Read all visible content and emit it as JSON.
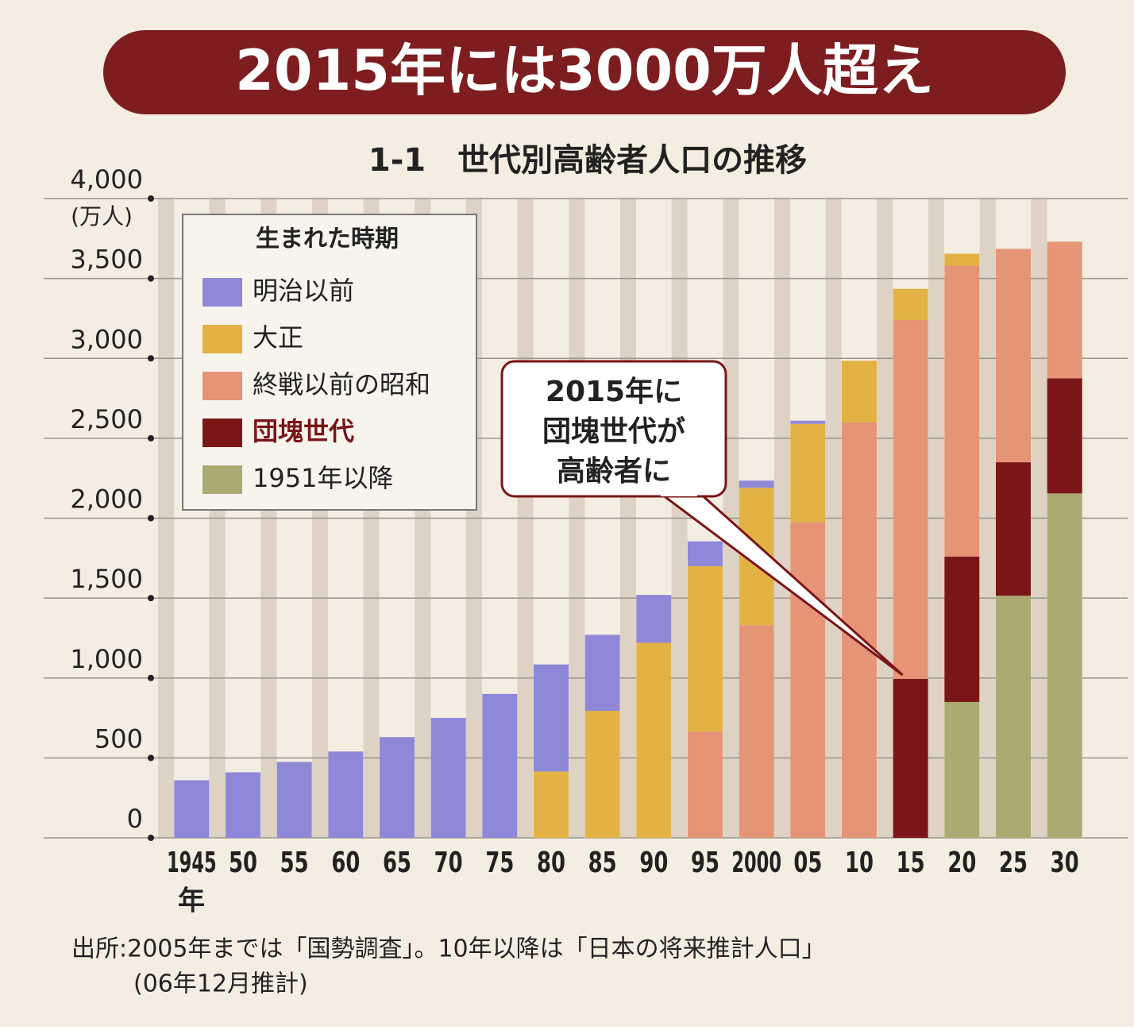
{
  "chart_data": {
    "type": "stacked-bar",
    "title": "2015年には3000万人超え",
    "subtitle": "1-1　世代別高齢者人口の推移",
    "y_unit": "(万人)",
    "x_unit": "年",
    "legend_title": "生まれた時期",
    "callout": [
      "2015年に",
      "団塊世代が",
      "高齢者に"
    ],
    "source": [
      "出所:2005年までは「国勢調査」。10年以降は「日本の将来推計人口」",
      "(06年12月推計)"
    ],
    "categories": [
      "1945",
      "50",
      "55",
      "60",
      "65",
      "70",
      "75",
      "80",
      "85",
      "90",
      "95",
      "2000",
      "05",
      "10",
      "15",
      "20",
      "25",
      "30"
    ],
    "series": [
      {
        "name": "1951年以降",
        "color": "#a9ab72",
        "values": [
          null,
          null,
          null,
          null,
          null,
          null,
          null,
          null,
          null,
          null,
          null,
          null,
          null,
          null,
          null,
          850,
          1515,
          2155
        ]
      },
      {
        "name": "団塊世代",
        "color": "#7a1518",
        "values": [
          null,
          null,
          null,
          null,
          null,
          null,
          null,
          null,
          null,
          null,
          null,
          null,
          null,
          null,
          995,
          910,
          835,
          720
        ]
      },
      {
        "name": "終戦以前の昭和",
        "color": "#e59476",
        "values": [
          null,
          null,
          null,
          null,
          null,
          null,
          null,
          null,
          null,
          null,
          665,
          1330,
          1975,
          2600,
          2245,
          1820,
          1335,
          855
        ]
      },
      {
        "name": "大正",
        "color": "#e2b244",
        "values": [
          null,
          null,
          null,
          null,
          null,
          null,
          null,
          415,
          795,
          1220,
          1035,
          860,
          615,
          385,
          195,
          75,
          null,
          null
        ]
      },
      {
        "name": "明治以前",
        "color": "#8f88d8",
        "values": [
          360,
          410,
          475,
          540,
          630,
          750,
          900,
          670,
          475,
          300,
          155,
          45,
          20,
          null,
          null,
          null,
          null,
          null
        ]
      }
    ],
    "legend_order": [
      4,
      3,
      2,
      1,
      0
    ],
    "ylim": [
      0,
      4000
    ],
    "yticks": [
      0,
      500,
      {
        "value": 1000,
        "label": "1,000"
      },
      {
        "value": 1500,
        "label": "1,500"
      },
      {
        "value": 2000,
        "label": "2,000"
      },
      {
        "value": 2500,
        "label": "2,500"
      },
      {
        "value": 3000,
        "label": "3,000"
      },
      {
        "value": 3500,
        "label": "3,500"
      },
      {
        "value": 4000,
        "label": "4,000"
      }
    ],
    "grid": true
  }
}
